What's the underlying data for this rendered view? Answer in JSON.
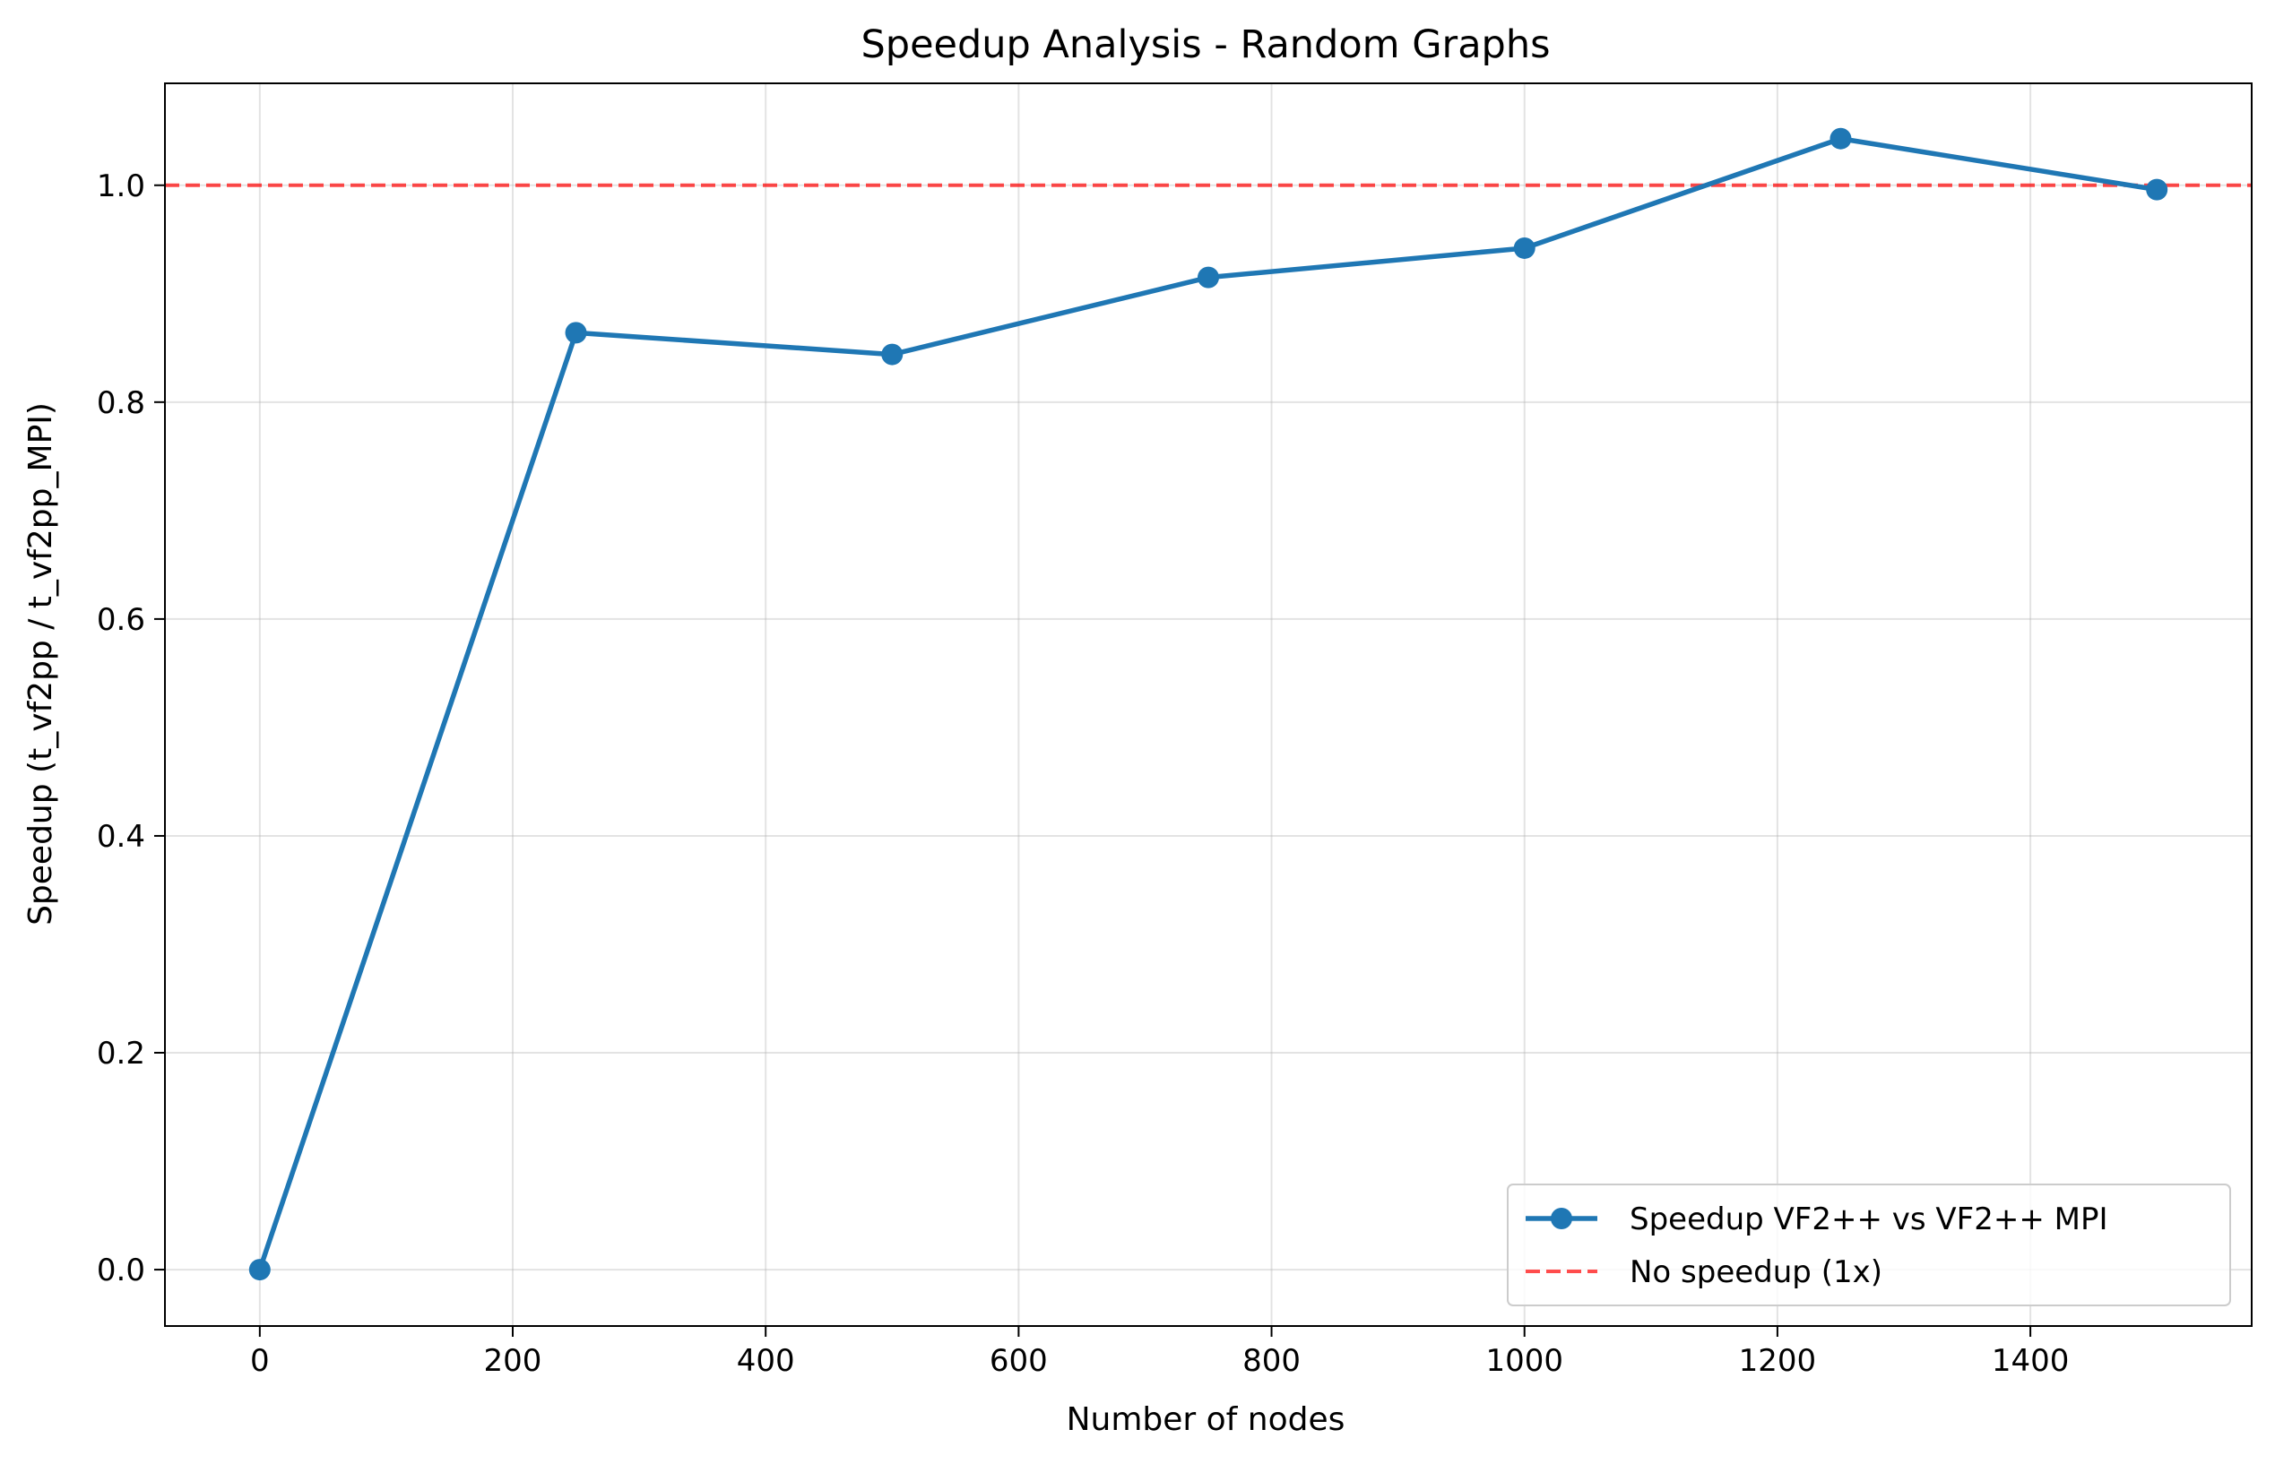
{
  "chart_data": {
    "type": "line",
    "title": "Speedup Analysis - Random Graphs",
    "xlabel": "Number of nodes",
    "ylabel": "Speedup (t_vf2pp / t_vf2pp_MPI)",
    "xlim": [
      -75,
      1575
    ],
    "ylim": [
      -0.052,
      1.094
    ],
    "x_ticks": [
      0,
      200,
      400,
      600,
      800,
      1000,
      1200,
      1400
    ],
    "x_tick_labels": [
      "0",
      "200",
      "400",
      "600",
      "800",
      "1000",
      "1200",
      "1400"
    ],
    "y_ticks": [
      0.0,
      0.2,
      0.4,
      0.6,
      0.8,
      1.0
    ],
    "y_tick_labels": [
      "0.0",
      "0.2",
      "0.4",
      "0.6",
      "0.8",
      "1.0"
    ],
    "grid": true,
    "legend_position": "bottom-right",
    "series": [
      {
        "name": "Speedup VF2++ vs VF2++ MPI",
        "style": "solid-line-with-circle-markers",
        "color": "#1f77b4",
        "x": [
          0,
          250,
          500,
          750,
          1000,
          1250,
          1500
        ],
        "y": [
          0.0,
          0.864,
          0.844,
          0.915,
          0.942,
          1.043,
          0.996
        ]
      }
    ],
    "reference_lines": [
      {
        "name": "No speedup (1x)",
        "orientation": "horizontal",
        "y": 1.0,
        "style": "dashed",
        "color": "#ff0000"
      }
    ]
  }
}
